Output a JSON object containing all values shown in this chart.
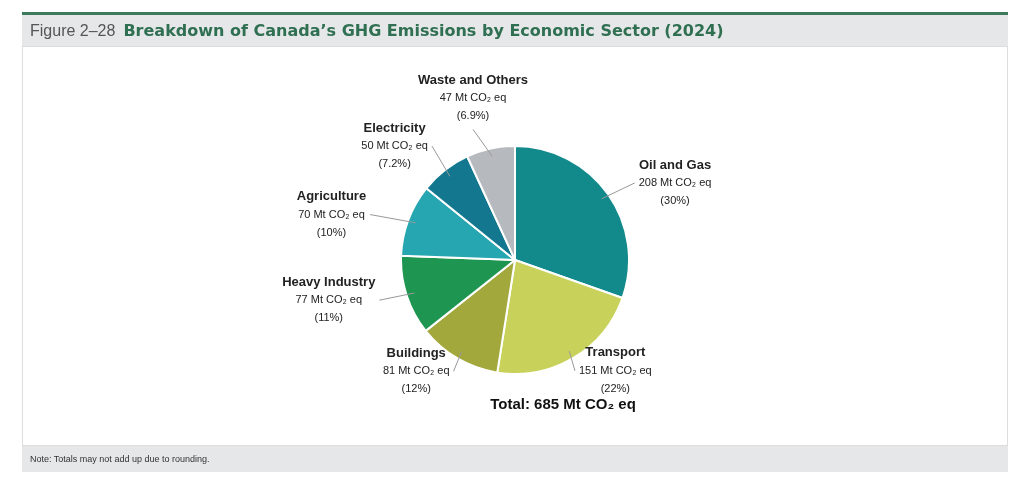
{
  "chart_data": {
    "type": "pie",
    "subtitle": "Figure 2–28",
    "title": "Breakdown of Canada’s GHG Emissions by Economic Sector (2024)",
    "categories": [
      "Oil and Gas",
      "Transport",
      "Buildings",
      "Heavy Industry",
      "Agriculture",
      "Electricity",
      "Waste and Others"
    ],
    "values": [
      208,
      151,
      81,
      77,
      70,
      50,
      47
    ],
    "colors": [
      "#128a8c",
      "#c8d25a",
      "#a2a83c",
      "#1f9552",
      "#26a6b0",
      "#13788f",
      "#b6b9be"
    ],
    "value_labels": [
      "208 Mt CO₂ eq\n(30%)",
      "151 Mt CO₂ eq\n(22%)",
      "81 Mt CO₂ eq\n(12%)",
      "77 Mt CO₂ eq\n(11%)",
      "70 Mt CO₂ eq\n(10%)",
      "50 Mt CO₂ eq\n(7.2%)",
      "47 Mt CO₂ eq\n(6.9%)"
    ],
    "annotations": [
      "Total: 685 Mt CO₂ eq",
      "Note: Totals may not add up due to rounding."
    ],
    "legend": false
  }
}
